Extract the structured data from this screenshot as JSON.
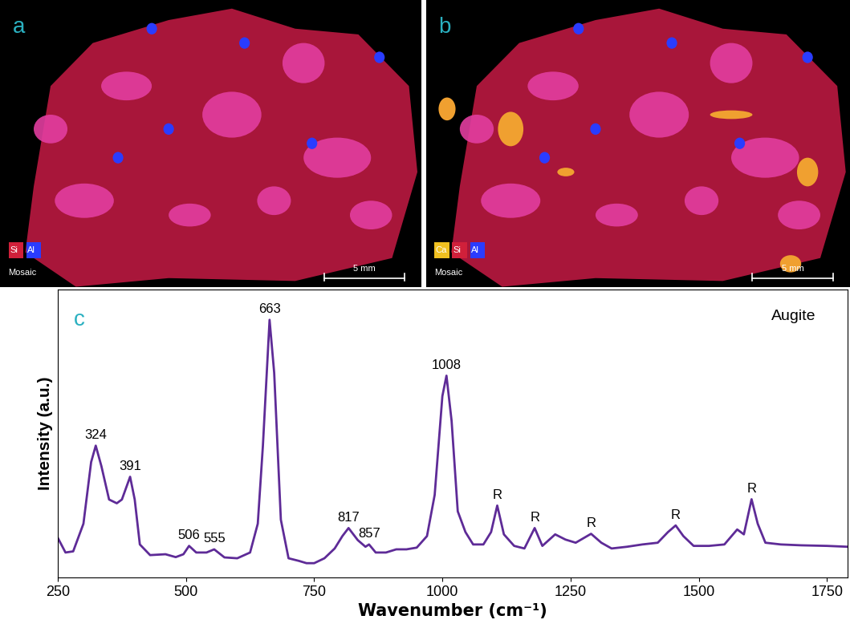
{
  "images": [
    {
      "label": "a",
      "elements": [
        {
          "name": "Si",
          "color": "#d0203a"
        },
        {
          "name": "Al",
          "color": "#2a3cff"
        }
      ],
      "caption": "Mosaic",
      "scale_bar": "5 mm"
    },
    {
      "label": "b",
      "elements": [
        {
          "name": "Ca",
          "color": "#f0c020"
        },
        {
          "name": "Si",
          "color": "#d0203a"
        },
        {
          "name": "Al",
          "color": "#2a3cff"
        }
      ],
      "caption": "Mosaic",
      "scale_bar": "5 mm"
    }
  ],
  "chart_data": {
    "type": "line",
    "panel_label": "c",
    "title": "Augite",
    "x_label": "Wavenumber (cm⁻¹)",
    "y_label": "Intensity (a.u.)",
    "color": "#5e2b97",
    "x": [
      250,
      265,
      280,
      300,
      315,
      324,
      335,
      350,
      365,
      375,
      391,
      400,
      410,
      430,
      460,
      480,
      495,
      506,
      520,
      540,
      555,
      575,
      600,
      625,
      640,
      650,
      663,
      672,
      685,
      700,
      720,
      735,
      750,
      770,
      790,
      805,
      817,
      835,
      850,
      857,
      870,
      890,
      910,
      930,
      950,
      970,
      985,
      1000,
      1008,
      1018,
      1030,
      1045,
      1060,
      1080,
      1095,
      1107,
      1120,
      1140,
      1160,
      1180,
      1195,
      1220,
      1240,
      1260,
      1290,
      1310,
      1330,
      1360,
      1390,
      1420,
      1440,
      1455,
      1470,
      1490,
      1520,
      1550,
      1575,
      1588,
      1603,
      1615,
      1630,
      1660,
      1700,
      1750,
      1790
    ],
    "values": [
      13.7,
      8.6,
      9,
      18.6,
      40,
      45.7,
      38.6,
      27,
      25.7,
      27,
      34.9,
      27,
      11.4,
      7.7,
      8,
      7,
      8,
      10.9,
      8.6,
      8.6,
      9.7,
      6.9,
      6.6,
      8.6,
      18.6,
      45.7,
      89.4,
      71,
      20,
      6.6,
      5.7,
      4.9,
      4.9,
      6.6,
      10,
      14.3,
      17.1,
      12.9,
      10.6,
      11.4,
      8.6,
      8.6,
      9.7,
      9.7,
      10.3,
      14.3,
      28.6,
      62.9,
      70,
      54.3,
      22.9,
      15.7,
      11.4,
      11.4,
      15.7,
      24.9,
      14.9,
      10.9,
      10,
      17.1,
      10.9,
      14.9,
      13.1,
      12,
      15.1,
      12,
      10,
      10.6,
      11.4,
      12,
      15.7,
      18,
      14.3,
      10.9,
      10.9,
      11.4,
      16.6,
      14.9,
      27.1,
      18.6,
      12,
      11.4,
      11.1,
      10.9,
      10.6
    ],
    "xlim": [
      250,
      1790
    ],
    "xticks": [
      250,
      500,
      750,
      1000,
      1250,
      1500,
      1750
    ],
    "ylim": [
      0,
      100
    ],
    "yticks": [],
    "tick_labels": "x",
    "annotations": [
      {
        "x": 324,
        "text": "324"
      },
      {
        "x": 391,
        "text": "391"
      },
      {
        "x": 506,
        "text": "506"
      },
      {
        "x": 555,
        "text": "555"
      },
      {
        "x": 663,
        "text": "663"
      },
      {
        "x": 817,
        "text": "817"
      },
      {
        "x": 857,
        "text": "857"
      },
      {
        "x": 1008,
        "text": "1008"
      },
      {
        "x": 1107,
        "text": "R"
      },
      {
        "x": 1180,
        "text": "R"
      },
      {
        "x": 1290,
        "text": "R"
      },
      {
        "x": 1455,
        "text": "R"
      },
      {
        "x": 1603,
        "text": "R"
      }
    ]
  }
}
